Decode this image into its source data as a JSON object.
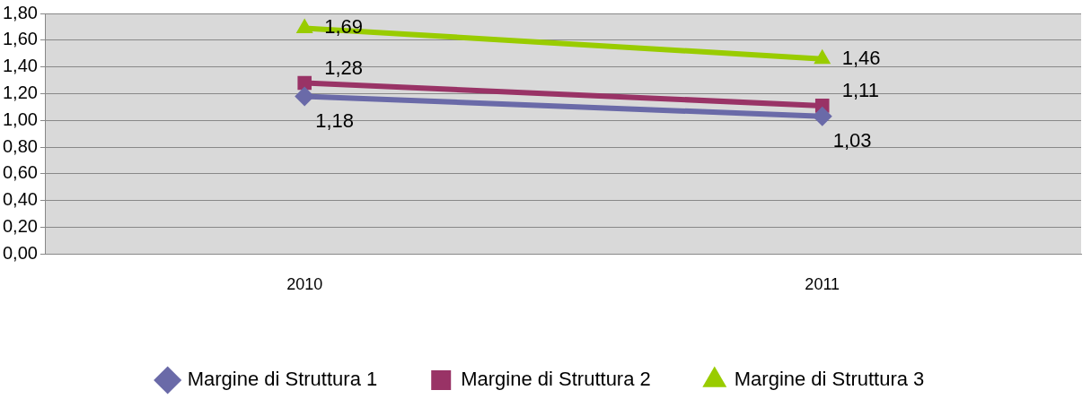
{
  "chart_data": {
    "type": "line",
    "categories": [
      "2010",
      "2011"
    ],
    "series": [
      {
        "name": "Margine di Struttura 1",
        "color": "#6a6aa8",
        "marker": "diamond",
        "values": [
          1.18,
          1.03
        ],
        "value_labels": [
          "1,18",
          "1,03"
        ]
      },
      {
        "name": "Margine di Struttura 2",
        "color": "#993366",
        "marker": "square",
        "values": [
          1.28,
          1.11
        ],
        "value_labels": [
          "1,28",
          "1,11"
        ]
      },
      {
        "name": "Margine di Struttura 3",
        "color": "#99cc00",
        "marker": "triangle",
        "values": [
          1.69,
          1.46
        ],
        "value_labels": [
          "1,69",
          "1,46"
        ]
      }
    ],
    "ylim": [
      0,
      1.8
    ],
    "yticks": [
      {
        "value": 0,
        "label": "0,00"
      },
      {
        "value": 0.2,
        "label": "0,20"
      },
      {
        "value": 0.4,
        "label": "0,40"
      },
      {
        "value": 0.6,
        "label": "0,60"
      },
      {
        "value": 0.8,
        "label": "0,80"
      },
      {
        "value": 1,
        "label": "1,00"
      },
      {
        "value": 1.2,
        "label": "1,20"
      },
      {
        "value": 1.4,
        "label": "1,40"
      },
      {
        "value": 1.6,
        "label": "1,60"
      },
      {
        "value": 1.8,
        "label": "1,80"
      }
    ],
    "grid": "y",
    "legend": "bottom"
  }
}
